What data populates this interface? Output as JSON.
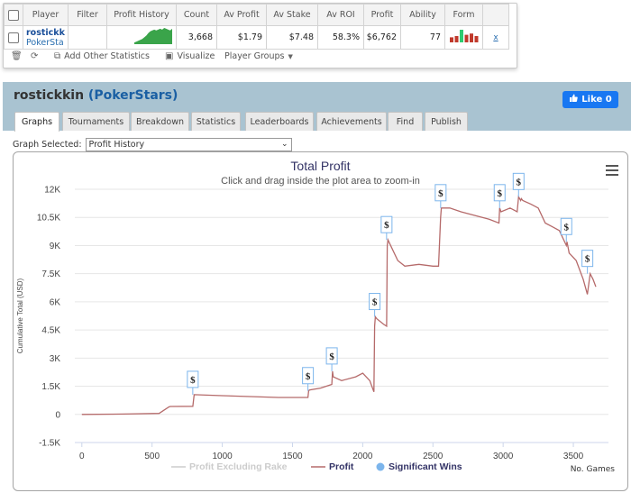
{
  "stats_table": {
    "headers": [
      "Player",
      "Filter",
      "Profit History",
      "Count",
      "Av Profit",
      "Av Stake",
      "Av ROI",
      "Profit",
      "Ability",
      "Form"
    ],
    "row": {
      "player_name": "rostickk",
      "player_site": "PokerSta",
      "count": "3,668",
      "av_profit": "$1.79",
      "av_stake": "$7.48",
      "av_roi": "58.3%",
      "profit": "$6,762",
      "ability": "77",
      "close": "x",
      "profit_history_bars": [
        2,
        3,
        4,
        5,
        6,
        8,
        10,
        13,
        15,
        16,
        17,
        16,
        17,
        18,
        17,
        19,
        18,
        17,
        16,
        18
      ],
      "form_bars": [
        {
          "value": 0.4,
          "color": "#c0392b"
        },
        {
          "value": 0.5,
          "color": "#c0392b"
        },
        {
          "value": 1.0,
          "color": "#2ecc71"
        },
        {
          "value": 0.6,
          "color": "#c0392b"
        },
        {
          "value": 0.7,
          "color": "#c0392b"
        },
        {
          "value": 0.5,
          "color": "#c0392b"
        }
      ]
    }
  },
  "toolbar": {
    "add_other_statistics": "Add Other Statistics",
    "visualize": "Visualize",
    "player_groups": "Player Groups"
  },
  "header": {
    "player": "rostickkin",
    "site_open": "(",
    "site": "PokerStars",
    "site_close": ")",
    "like_label": "Like 0"
  },
  "tabs": [
    "Graphs",
    "Tournaments",
    "Breakdown",
    "Statistics",
    "Leaderboards",
    "Achievements",
    "Find",
    "Publish"
  ],
  "graph_selected": {
    "label": "Graph Selected:",
    "value": "Profit History"
  },
  "chart_data": {
    "type": "line",
    "title": "Total Profit",
    "subtitle": "Click and drag inside the plot area to zoom-in",
    "ylabel": "Cumulative Total (USD)",
    "xlabel": "No. Games",
    "ylim": [
      -1500,
      12000
    ],
    "xlim": [
      -50,
      3750
    ],
    "y_ticks": [
      "-1.5K",
      "0",
      "1.5K",
      "3K",
      "4.5K",
      "6K",
      "7.5K",
      "9K",
      "10.5K",
      "12K"
    ],
    "x_ticks": [
      "0",
      "500",
      "1000",
      "1500",
      "2000",
      "2500",
      "3000",
      "3500"
    ],
    "legend": [
      "Profit Excluding Rake",
      "Profit",
      "Significant Wins"
    ],
    "series": [
      {
        "name": "Profit",
        "color": "#b56a6a",
        "x": [
          0,
          300,
          550,
          620,
          630,
          790,
          800,
          1000,
          1200,
          1400,
          1610,
          1615,
          1620,
          1700,
          1780,
          1785,
          1790,
          1850,
          1950,
          2000,
          2050,
          2080,
          2085,
          2090,
          2100,
          2150,
          2170,
          2175,
          2180,
          2250,
          2300,
          2400,
          2500,
          2540,
          2555,
          2560,
          2620,
          2700,
          2800,
          2900,
          2970,
          2975,
          2985,
          3050,
          3100,
          3110,
          3125,
          3130,
          3140,
          3200,
          3250,
          3300,
          3350,
          3400,
          3450,
          3455,
          3470,
          3520,
          3570,
          3600,
          3620,
          3640,
          3660
        ],
        "y": [
          0,
          20,
          50,
          400,
          420,
          430,
          1050,
          1000,
          950,
          900,
          900,
          1250,
          1300,
          1400,
          1600,
          2300,
          2000,
          1800,
          2000,
          2200,
          1800,
          1200,
          4700,
          5200,
          5100,
          4800,
          4700,
          9000,
          9300,
          8200,
          7900,
          8000,
          7900,
          7900,
          10500,
          11000,
          11000,
          10800,
          10600,
          10400,
          10200,
          11000,
          10800,
          11000,
          10800,
          11600,
          11400,
          11500,
          11400,
          11200,
          11000,
          10200,
          10000,
          9800,
          9000,
          9200,
          8600,
          8200,
          7200,
          6400,
          7500,
          7200,
          6800
        ]
      }
    ],
    "significant_wins": [
      {
        "x": 790,
        "y": 1050
      },
      {
        "x": 1610,
        "y": 1250
      },
      {
        "x": 1780,
        "y": 2300
      },
      {
        "x": 2085,
        "y": 5200
      },
      {
        "x": 2170,
        "y": 9300
      },
      {
        "x": 2555,
        "y": 11000
      },
      {
        "x": 2975,
        "y": 11000
      },
      {
        "x": 3110,
        "y": 11600
      },
      {
        "x": 3450,
        "y": 9200
      },
      {
        "x": 3600,
        "y": 7500
      }
    ]
  },
  "colors": {
    "band": "#a9c3d1",
    "profit_line": "#b56a6a",
    "excl_rake_line": "#cccccc",
    "sig_win_dot": "#7cb5ec",
    "site_link": "#1a5fa3"
  }
}
